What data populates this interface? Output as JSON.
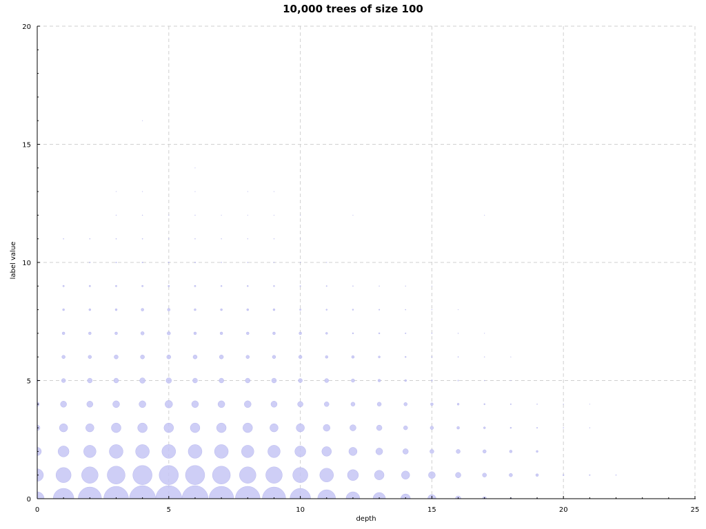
{
  "chart_data": {
    "type": "scatter",
    "title": "10,000 trees of size 100",
    "xlabel": "depth",
    "ylabel": "label value",
    "xlim": [
      0,
      25
    ],
    "ylim": [
      0,
      20
    ],
    "xticks": [
      0,
      5,
      10,
      15,
      20,
      25
    ],
    "yticks": [
      0,
      5,
      10,
      15,
      20
    ],
    "grid": true,
    "marker_color": "#c6c6f5",
    "marker_edge_color": "#9d9de6",
    "points": [
      {
        "x": 0,
        "y": 0,
        "r": 10
      },
      {
        "x": 1,
        "y": 0,
        "r": 15
      },
      {
        "x": 2,
        "y": 0,
        "r": 17
      },
      {
        "x": 3,
        "y": 0,
        "r": 18
      },
      {
        "x": 4,
        "y": 0,
        "r": 19
      },
      {
        "x": 5,
        "y": 0,
        "r": 19
      },
      {
        "x": 6,
        "y": 0,
        "r": 19
      },
      {
        "x": 7,
        "y": 0,
        "r": 18
      },
      {
        "x": 8,
        "y": 0,
        "r": 18
      },
      {
        "x": 9,
        "y": 0,
        "r": 17
      },
      {
        "x": 10,
        "y": 0,
        "r": 15
      },
      {
        "x": 11,
        "y": 0,
        "r": 13
      },
      {
        "x": 12,
        "y": 0,
        "r": 10
      },
      {
        "x": 13,
        "y": 0,
        "r": 9
      },
      {
        "x": 14,
        "y": 0,
        "r": 7
      },
      {
        "x": 15,
        "y": 0,
        "r": 6
      },
      {
        "x": 16,
        "y": 0,
        "r": 4
      },
      {
        "x": 17,
        "y": 0,
        "r": 3
      },
      {
        "x": 18,
        "y": 0,
        "r": 1.5
      },
      {
        "x": 19,
        "y": 0,
        "r": 1
      },
      {
        "x": 0,
        "y": 1,
        "r": 9
      },
      {
        "x": 1,
        "y": 1,
        "r": 11
      },
      {
        "x": 2,
        "y": 1,
        "r": 12
      },
      {
        "x": 3,
        "y": 1,
        "r": 13
      },
      {
        "x": 4,
        "y": 1,
        "r": 14
      },
      {
        "x": 5,
        "y": 1,
        "r": 14
      },
      {
        "x": 6,
        "y": 1,
        "r": 14
      },
      {
        "x": 7,
        "y": 1,
        "r": 13
      },
      {
        "x": 8,
        "y": 1,
        "r": 12
      },
      {
        "x": 9,
        "y": 1,
        "r": 12
      },
      {
        "x": 10,
        "y": 1,
        "r": 11
      },
      {
        "x": 11,
        "y": 1,
        "r": 10
      },
      {
        "x": 12,
        "y": 1,
        "r": 8
      },
      {
        "x": 13,
        "y": 1,
        "r": 7
      },
      {
        "x": 14,
        "y": 1,
        "r": 6
      },
      {
        "x": 15,
        "y": 1,
        "r": 5
      },
      {
        "x": 16,
        "y": 1,
        "r": 4
      },
      {
        "x": 17,
        "y": 1,
        "r": 3
      },
      {
        "x": 18,
        "y": 1,
        "r": 2.5
      },
      {
        "x": 19,
        "y": 1,
        "r": 2
      },
      {
        "x": 20,
        "y": 1,
        "r": 1
      },
      {
        "x": 21,
        "y": 1,
        "r": 0.8
      },
      {
        "x": 22,
        "y": 1,
        "r": 0.6
      },
      {
        "x": 0,
        "y": 2,
        "r": 6
      },
      {
        "x": 1,
        "y": 2,
        "r": 8
      },
      {
        "x": 2,
        "y": 2,
        "r": 9
      },
      {
        "x": 3,
        "y": 2,
        "r": 10
      },
      {
        "x": 4,
        "y": 2,
        "r": 10
      },
      {
        "x": 5,
        "y": 2,
        "r": 10
      },
      {
        "x": 6,
        "y": 2,
        "r": 10
      },
      {
        "x": 7,
        "y": 2,
        "r": 10
      },
      {
        "x": 8,
        "y": 2,
        "r": 9
      },
      {
        "x": 9,
        "y": 2,
        "r": 9
      },
      {
        "x": 10,
        "y": 2,
        "r": 8
      },
      {
        "x": 11,
        "y": 2,
        "r": 7
      },
      {
        "x": 12,
        "y": 2,
        "r": 6
      },
      {
        "x": 13,
        "y": 2,
        "r": 5
      },
      {
        "x": 14,
        "y": 2,
        "r": 4
      },
      {
        "x": 15,
        "y": 2,
        "r": 3
      },
      {
        "x": 16,
        "y": 2,
        "r": 3
      },
      {
        "x": 17,
        "y": 2,
        "r": 2.5
      },
      {
        "x": 18,
        "y": 2,
        "r": 2
      },
      {
        "x": 19,
        "y": 2,
        "r": 1.5
      },
      {
        "x": 0,
        "y": 3,
        "r": 4
      },
      {
        "x": 1,
        "y": 3,
        "r": 6
      },
      {
        "x": 2,
        "y": 3,
        "r": 6
      },
      {
        "x": 3,
        "y": 3,
        "r": 7
      },
      {
        "x": 4,
        "y": 3,
        "r": 7
      },
      {
        "x": 5,
        "y": 3,
        "r": 7
      },
      {
        "x": 6,
        "y": 3,
        "r": 7
      },
      {
        "x": 7,
        "y": 3,
        "r": 7
      },
      {
        "x": 8,
        "y": 3,
        "r": 7
      },
      {
        "x": 9,
        "y": 3,
        "r": 6
      },
      {
        "x": 10,
        "y": 3,
        "r": 6
      },
      {
        "x": 11,
        "y": 3,
        "r": 5
      },
      {
        "x": 12,
        "y": 3,
        "r": 4.5
      },
      {
        "x": 13,
        "y": 3,
        "r": 4
      },
      {
        "x": 14,
        "y": 3,
        "r": 3
      },
      {
        "x": 15,
        "y": 3,
        "r": 2.5
      },
      {
        "x": 16,
        "y": 3,
        "r": 2
      },
      {
        "x": 17,
        "y": 3,
        "r": 1.5
      },
      {
        "x": 18,
        "y": 3,
        "r": 1
      },
      {
        "x": 19,
        "y": 3,
        "r": 0.8
      },
      {
        "x": 20,
        "y": 3,
        "r": 0.6
      },
      {
        "x": 21,
        "y": 3,
        "r": 0.5
      },
      {
        "x": 0,
        "y": 4,
        "r": 3
      },
      {
        "x": 1,
        "y": 4,
        "r": 4.5
      },
      {
        "x": 2,
        "y": 4,
        "r": 4.5
      },
      {
        "x": 3,
        "y": 4,
        "r": 5
      },
      {
        "x": 4,
        "y": 4,
        "r": 5
      },
      {
        "x": 5,
        "y": 4,
        "r": 5.5
      },
      {
        "x": 6,
        "y": 4,
        "r": 5
      },
      {
        "x": 7,
        "y": 4,
        "r": 5
      },
      {
        "x": 8,
        "y": 4,
        "r": 5
      },
      {
        "x": 9,
        "y": 4,
        "r": 4.5
      },
      {
        "x": 10,
        "y": 4,
        "r": 4
      },
      {
        "x": 11,
        "y": 4,
        "r": 3.5
      },
      {
        "x": 12,
        "y": 4,
        "r": 3
      },
      {
        "x": 13,
        "y": 4,
        "r": 3
      },
      {
        "x": 14,
        "y": 4,
        "r": 2.5
      },
      {
        "x": 15,
        "y": 4,
        "r": 2
      },
      {
        "x": 16,
        "y": 4,
        "r": 1.5
      },
      {
        "x": 17,
        "y": 4,
        "r": 1
      },
      {
        "x": 18,
        "y": 4,
        "r": 0.8
      },
      {
        "x": 19,
        "y": 4,
        "r": 0.6
      },
      {
        "x": 20,
        "y": 4,
        "r": 0.5
      },
      {
        "x": 21,
        "y": 4,
        "r": 0.4
      },
      {
        "x": 0,
        "y": 5,
        "r": 1.5
      },
      {
        "x": 1,
        "y": 5,
        "r": 3
      },
      {
        "x": 2,
        "y": 5,
        "r": 3.5
      },
      {
        "x": 3,
        "y": 5,
        "r": 3.5
      },
      {
        "x": 4,
        "y": 5,
        "r": 4
      },
      {
        "x": 5,
        "y": 5,
        "r": 4
      },
      {
        "x": 6,
        "y": 5,
        "r": 3.5
      },
      {
        "x": 7,
        "y": 5,
        "r": 3.5
      },
      {
        "x": 8,
        "y": 5,
        "r": 3.5
      },
      {
        "x": 9,
        "y": 5,
        "r": 3.5
      },
      {
        "x": 10,
        "y": 5,
        "r": 3
      },
      {
        "x": 11,
        "y": 5,
        "r": 3
      },
      {
        "x": 12,
        "y": 5,
        "r": 2.5
      },
      {
        "x": 13,
        "y": 5,
        "r": 2
      },
      {
        "x": 14,
        "y": 5,
        "r": 1.5
      },
      {
        "x": 15,
        "y": 5,
        "r": 1
      },
      {
        "x": 16,
        "y": 5,
        "r": 0.8
      },
      {
        "x": 17,
        "y": 5,
        "r": 0.6
      },
      {
        "x": 18,
        "y": 5,
        "r": 0.5
      },
      {
        "x": 1,
        "y": 6,
        "r": 2.5
      },
      {
        "x": 2,
        "y": 6,
        "r": 2.5
      },
      {
        "x": 3,
        "y": 6,
        "r": 3
      },
      {
        "x": 4,
        "y": 6,
        "r": 3
      },
      {
        "x": 5,
        "y": 6,
        "r": 3
      },
      {
        "x": 6,
        "y": 6,
        "r": 3
      },
      {
        "x": 7,
        "y": 6,
        "r": 3
      },
      {
        "x": 8,
        "y": 6,
        "r": 2.5
      },
      {
        "x": 9,
        "y": 6,
        "r": 2.5
      },
      {
        "x": 10,
        "y": 6,
        "r": 2.5
      },
      {
        "x": 11,
        "y": 6,
        "r": 2
      },
      {
        "x": 12,
        "y": 6,
        "r": 2
      },
      {
        "x": 13,
        "y": 6,
        "r": 1.5
      },
      {
        "x": 14,
        "y": 6,
        "r": 1
      },
      {
        "x": 15,
        "y": 6,
        "r": 0.8
      },
      {
        "x": 16,
        "y": 6,
        "r": 0.6
      },
      {
        "x": 17,
        "y": 6,
        "r": 0.5
      },
      {
        "x": 18,
        "y": 6,
        "r": 0.4
      },
      {
        "x": 1,
        "y": 7,
        "r": 2
      },
      {
        "x": 2,
        "y": 7,
        "r": 2
      },
      {
        "x": 3,
        "y": 7,
        "r": 2
      },
      {
        "x": 4,
        "y": 7,
        "r": 2.5
      },
      {
        "x": 5,
        "y": 7,
        "r": 2.5
      },
      {
        "x": 6,
        "y": 7,
        "r": 2
      },
      {
        "x": 7,
        "y": 7,
        "r": 2
      },
      {
        "x": 8,
        "y": 7,
        "r": 2
      },
      {
        "x": 9,
        "y": 7,
        "r": 2
      },
      {
        "x": 10,
        "y": 7,
        "r": 2
      },
      {
        "x": 11,
        "y": 7,
        "r": 1.5
      },
      {
        "x": 12,
        "y": 7,
        "r": 1
      },
      {
        "x": 13,
        "y": 7,
        "r": 1
      },
      {
        "x": 14,
        "y": 7,
        "r": 0.8
      },
      {
        "x": 15,
        "y": 7,
        "r": 0.6
      },
      {
        "x": 16,
        "y": 7,
        "r": 0.5
      },
      {
        "x": 17,
        "y": 7,
        "r": 0.4
      },
      {
        "x": 1,
        "y": 8,
        "r": 1.5
      },
      {
        "x": 2,
        "y": 8,
        "r": 1.5
      },
      {
        "x": 3,
        "y": 8,
        "r": 1.5
      },
      {
        "x": 4,
        "y": 8,
        "r": 2
      },
      {
        "x": 5,
        "y": 8,
        "r": 2
      },
      {
        "x": 6,
        "y": 8,
        "r": 1.5
      },
      {
        "x": 7,
        "y": 8,
        "r": 1.5
      },
      {
        "x": 8,
        "y": 8,
        "r": 1.5
      },
      {
        "x": 9,
        "y": 8,
        "r": 1.5
      },
      {
        "x": 10,
        "y": 8,
        "r": 1.2
      },
      {
        "x": 11,
        "y": 8,
        "r": 1
      },
      {
        "x": 12,
        "y": 8,
        "r": 1
      },
      {
        "x": 13,
        "y": 8,
        "r": 0.8
      },
      {
        "x": 14,
        "y": 8,
        "r": 0.6
      },
      {
        "x": 15,
        "y": 8,
        "r": 0.5
      },
      {
        "x": 16,
        "y": 8,
        "r": 0.4
      },
      {
        "x": 1,
        "y": 9,
        "r": 1.2
      },
      {
        "x": 2,
        "y": 9,
        "r": 1.2
      },
      {
        "x": 3,
        "y": 9,
        "r": 1.2
      },
      {
        "x": 4,
        "y": 9,
        "r": 1.2
      },
      {
        "x": 5,
        "y": 9,
        "r": 1.2
      },
      {
        "x": 6,
        "y": 9,
        "r": 1.2
      },
      {
        "x": 7,
        "y": 9,
        "r": 1
      },
      {
        "x": 8,
        "y": 9,
        "r": 1
      },
      {
        "x": 9,
        "y": 9,
        "r": 1
      },
      {
        "x": 10,
        "y": 9,
        "r": 0.8
      },
      {
        "x": 11,
        "y": 9,
        "r": 0.8
      },
      {
        "x": 12,
        "y": 9,
        "r": 0.6
      },
      {
        "x": 13,
        "y": 9,
        "r": 0.5
      },
      {
        "x": 14,
        "y": 9,
        "r": 0.5
      },
      {
        "x": 15,
        "y": 9,
        "r": 0.4
      },
      {
        "x": 2,
        "y": 10,
        "r": 0.8
      },
      {
        "x": 3,
        "y": 10,
        "r": 0.8
      },
      {
        "x": 4,
        "y": 10,
        "r": 0.8
      },
      {
        "x": 5,
        "y": 10,
        "r": 0.8
      },
      {
        "x": 6,
        "y": 10,
        "r": 0.8
      },
      {
        "x": 7,
        "y": 10,
        "r": 0.6
      },
      {
        "x": 8,
        "y": 10,
        "r": 0.6
      },
      {
        "x": 9,
        "y": 10,
        "r": 0.6
      },
      {
        "x": 10,
        "y": 10,
        "r": 0.5
      },
      {
        "x": 11,
        "y": 10,
        "r": 0.5
      },
      {
        "x": 1,
        "y": 11,
        "r": 0.6
      },
      {
        "x": 2,
        "y": 11,
        "r": 0.6
      },
      {
        "x": 3,
        "y": 11,
        "r": 0.6
      },
      {
        "x": 4,
        "y": 11,
        "r": 0.6
      },
      {
        "x": 5,
        "y": 11,
        "r": 0.6
      },
      {
        "x": 6,
        "y": 11,
        "r": 0.6
      },
      {
        "x": 7,
        "y": 11,
        "r": 0.5
      },
      {
        "x": 8,
        "y": 11,
        "r": 0.5
      },
      {
        "x": 9,
        "y": 11,
        "r": 0.5
      },
      {
        "x": 10,
        "y": 11,
        "r": 0.4
      },
      {
        "x": 3,
        "y": 12,
        "r": 0.5
      },
      {
        "x": 4,
        "y": 12,
        "r": 0.5
      },
      {
        "x": 5,
        "y": 12,
        "r": 0.5
      },
      {
        "x": 6,
        "y": 12,
        "r": 0.5
      },
      {
        "x": 7,
        "y": 12,
        "r": 0.4
      },
      {
        "x": 8,
        "y": 12,
        "r": 0.4
      },
      {
        "x": 9,
        "y": 12,
        "r": 0.4
      },
      {
        "x": 10,
        "y": 12,
        "r": 0.4
      },
      {
        "x": 12,
        "y": 12,
        "r": 0.4
      },
      {
        "x": 17,
        "y": 12,
        "r": 0.4
      },
      {
        "x": 3,
        "y": 13,
        "r": 0.4
      },
      {
        "x": 4,
        "y": 13,
        "r": 0.4
      },
      {
        "x": 6,
        "y": 13,
        "r": 0.4
      },
      {
        "x": 8,
        "y": 13,
        "r": 0.4
      },
      {
        "x": 9,
        "y": 13,
        "r": 0.4
      },
      {
        "x": 6,
        "y": 14,
        "r": 0.4
      },
      {
        "x": 4,
        "y": 16,
        "r": 0.4
      }
    ]
  }
}
